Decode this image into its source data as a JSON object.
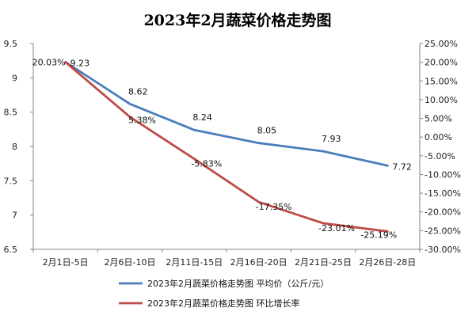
{
  "chart_data": {
    "type": "line",
    "title": "2023年2月蔬菜价格走势图",
    "categories": [
      "2月1日-5日",
      "2月6日-10日",
      "2月11日-15日",
      "2月16日-20日",
      "2月21日-25日",
      "2月26日-28日"
    ],
    "series": [
      {
        "name": "2023年2月蔬菜价格走势图 平均价（公斤/元）",
        "axis": "left",
        "color": "#4a7ebb",
        "values": [
          9.23,
          8.62,
          8.24,
          8.05,
          7.93,
          7.72
        ],
        "labels": [
          "9.23",
          "8.62",
          "8.24",
          "8.05",
          "7.93",
          "7.72"
        ]
      },
      {
        "name": "2023年2月蔬菜价格走势图 环比增长率",
        "axis": "right",
        "color": "#be4b48",
        "values": [
          20.03,
          5.38,
          -5.83,
          -17.35,
          -23.01,
          -25.19
        ],
        "labels": [
          "20.03%",
          "5.38%",
          "-5.83%",
          "-17.35%",
          "-23.01%",
          "-25.19%"
        ]
      }
    ],
    "y_left": {
      "min": 6.5,
      "max": 9.5,
      "step": 0.5,
      "ticks": [
        "6.5",
        "7",
        "7.5",
        "8",
        "8.5",
        "9",
        "9.5"
      ]
    },
    "y_right": {
      "min": -30,
      "max": 25,
      "step": 5,
      "ticks": [
        "-30.00%",
        "-25.00%",
        "-20.00%",
        "-15.00%",
        "-10.00%",
        "-5.00%",
        "0.00%",
        "5.00%",
        "10.00%",
        "15.00%",
        "20.00%",
        "25.00%"
      ]
    },
    "grid": false,
    "legend_position": "bottom"
  }
}
